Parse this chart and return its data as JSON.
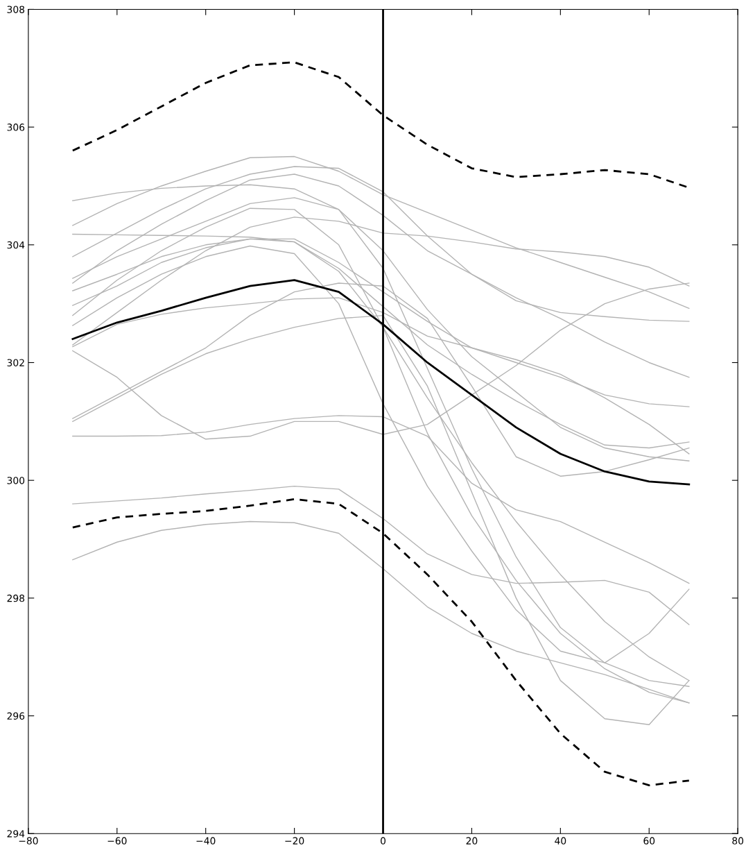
{
  "chart_data": {
    "type": "line",
    "xlim": [
      -80,
      80
    ],
    "ylim": [
      294,
      308
    ],
    "xticks": [
      -80,
      -60,
      -40,
      -20,
      0,
      20,
      40,
      60,
      80
    ],
    "yticks": [
      294,
      296,
      298,
      300,
      302,
      304,
      306,
      308
    ],
    "grid": false,
    "legend": false,
    "line_style": "solid",
    "marker": "none",
    "x": [
      -70,
      -60,
      -50,
      -40,
      -30,
      -20,
      -10,
      0,
      10,
      20,
      30,
      40,
      50,
      60,
      69
    ],
    "series": [
      {
        "color": "#b3b3b3",
        "values": [
          304.75,
          304.88,
          304.96,
          305.0,
          305.02,
          304.95,
          304.6,
          303.6,
          301.9,
          300.2,
          298.7,
          297.5,
          296.9,
          296.6,
          296.5
        ]
      },
      {
        "color": "#b3b3b3",
        "values": [
          304.33,
          304.7,
          305.0,
          305.25,
          305.48,
          305.5,
          305.25,
          304.85,
          304.55,
          304.25,
          303.95,
          303.7,
          303.45,
          303.2,
          302.92
        ]
      },
      {
        "color": "#b3b3b3",
        "values": [
          304.18,
          304.17,
          304.16,
          304.15,
          304.13,
          304.05,
          303.55,
          302.6,
          301.4,
          300.3,
          299.3,
          298.4,
          297.6,
          297.0,
          296.6
        ]
      },
      {
        "color": "#b3b3b3",
        "values": [
          303.8,
          304.2,
          304.6,
          304.95,
          305.2,
          305.33,
          305.3,
          304.9,
          304.15,
          303.5,
          303.05,
          302.85,
          302.78,
          302.72,
          302.7
        ]
      },
      {
        "color": "#b3b3b3",
        "values": [
          303.43,
          303.8,
          304.1,
          304.4,
          304.7,
          304.8,
          304.6,
          303.9,
          302.9,
          302.1,
          301.5,
          300.9,
          300.55,
          300.4,
          300.33
        ]
      },
      {
        "color": "#b3b3b3",
        "values": [
          303.35,
          303.9,
          304.35,
          304.75,
          305.1,
          305.2,
          305.0,
          304.5,
          303.9,
          303.5,
          303.1,
          302.75,
          302.35,
          302.0,
          301.75
        ]
      },
      {
        "color": "#b3b3b3",
        "values": [
          303.22,
          303.5,
          303.8,
          304.0,
          304.1,
          304.05,
          303.6,
          302.95,
          302.3,
          301.8,
          301.35,
          300.95,
          300.6,
          300.55,
          300.65
        ]
      },
      {
        "color": "#b3b3b3",
        "values": [
          302.97,
          303.3,
          303.7,
          303.95,
          304.1,
          304.1,
          303.7,
          303.2,
          302.7,
          302.25,
          302.0,
          301.75,
          301.45,
          301.3,
          301.25
        ]
      },
      {
        "color": "#b3b3b3",
        "values": [
          302.8,
          303.4,
          303.9,
          304.3,
          304.62,
          304.6,
          304.0,
          302.6,
          300.8,
          299.4,
          298.3,
          297.4,
          296.8,
          296.4,
          296.22
        ]
      },
      {
        "color": "#b3b3b3",
        "values": [
          302.63,
          303.1,
          303.5,
          303.8,
          303.98,
          303.85,
          303.0,
          301.3,
          299.9,
          298.8,
          297.8,
          297.1,
          296.9,
          297.4,
          298.15
        ]
      },
      {
        "color": "#b3b3b3",
        "values": [
          302.3,
          302.85,
          303.4,
          303.9,
          304.3,
          304.47,
          304.4,
          304.2,
          304.15,
          304.05,
          303.93,
          303.88,
          303.8,
          303.62,
          303.3
        ]
      },
      {
        "color": "#b3b3b3",
        "values": [
          302.27,
          302.65,
          302.82,
          302.93,
          303.0,
          303.08,
          303.1,
          302.85,
          302.45,
          302.25,
          302.05,
          301.8,
          301.4,
          300.95,
          300.45
        ]
      },
      {
        "color": "#b3b3b3",
        "values": [
          302.2,
          301.75,
          301.1,
          300.7,
          300.75,
          301.0,
          301.0,
          300.78,
          300.95,
          301.45,
          301.95,
          302.55,
          303.0,
          303.25,
          303.35
        ]
      },
      {
        "color": "#b3b3b3",
        "values": [
          301.05,
          301.45,
          301.85,
          302.25,
          302.8,
          303.2,
          303.35,
          303.3,
          302.75,
          301.6,
          300.4,
          300.07,
          300.15,
          300.35,
          300.55
        ]
      },
      {
        "color": "#b3b3b3",
        "values": [
          301.0,
          301.4,
          301.8,
          302.15,
          302.4,
          302.6,
          302.75,
          302.8,
          301.6,
          299.8,
          298.0,
          296.6,
          295.95,
          295.85,
          296.6
        ]
      },
      {
        "color": "#b3b3b3",
        "values": [
          300.75,
          300.75,
          300.76,
          300.82,
          300.95,
          301.05,
          301.1,
          301.08,
          300.75,
          299.95,
          299.5,
          299.3,
          298.95,
          298.6,
          298.25
        ]
      },
      {
        "color": "#b3b3b3",
        "values": [
          299.6,
          299.65,
          299.7,
          299.77,
          299.83,
          299.9,
          299.85,
          299.35,
          298.75,
          298.4,
          298.25,
          298.27,
          298.3,
          298.1,
          297.55
        ]
      },
      {
        "color": "#b3b3b3",
        "values": [
          298.65,
          298.95,
          299.15,
          299.25,
          299.3,
          299.28,
          299.1,
          298.5,
          297.85,
          297.4,
          297.1,
          296.9,
          296.7,
          296.45,
          296.22
        ]
      },
      {
        "color": "#000000",
        "values": [
          302.4,
          302.68,
          302.88,
          303.1,
          303.3,
          303.4,
          303.2,
          302.65,
          302.0,
          301.45,
          300.9,
          300.45,
          300.15,
          299.98,
          299.93
        ]
      },
      {
        "color": "#000000",
        "line_style": "dashed",
        "values": [
          305.6,
          305.95,
          306.35,
          306.75,
          307.05,
          307.1,
          306.85,
          306.2,
          305.7,
          305.3,
          305.15,
          305.2,
          305.27,
          305.2,
          304.97
        ]
      },
      {
        "color": "#000000",
        "line_style": "dashed",
        "values": [
          299.2,
          299.37,
          299.43,
          299.48,
          299.57,
          299.68,
          299.6,
          299.1,
          298.4,
          297.6,
          296.6,
          295.7,
          295.05,
          294.82,
          294.9
        ]
      }
    ],
    "ref_lines": [
      {
        "axis": "x",
        "value": 0,
        "color": "#000000",
        "line_style": "solid"
      }
    ]
  }
}
